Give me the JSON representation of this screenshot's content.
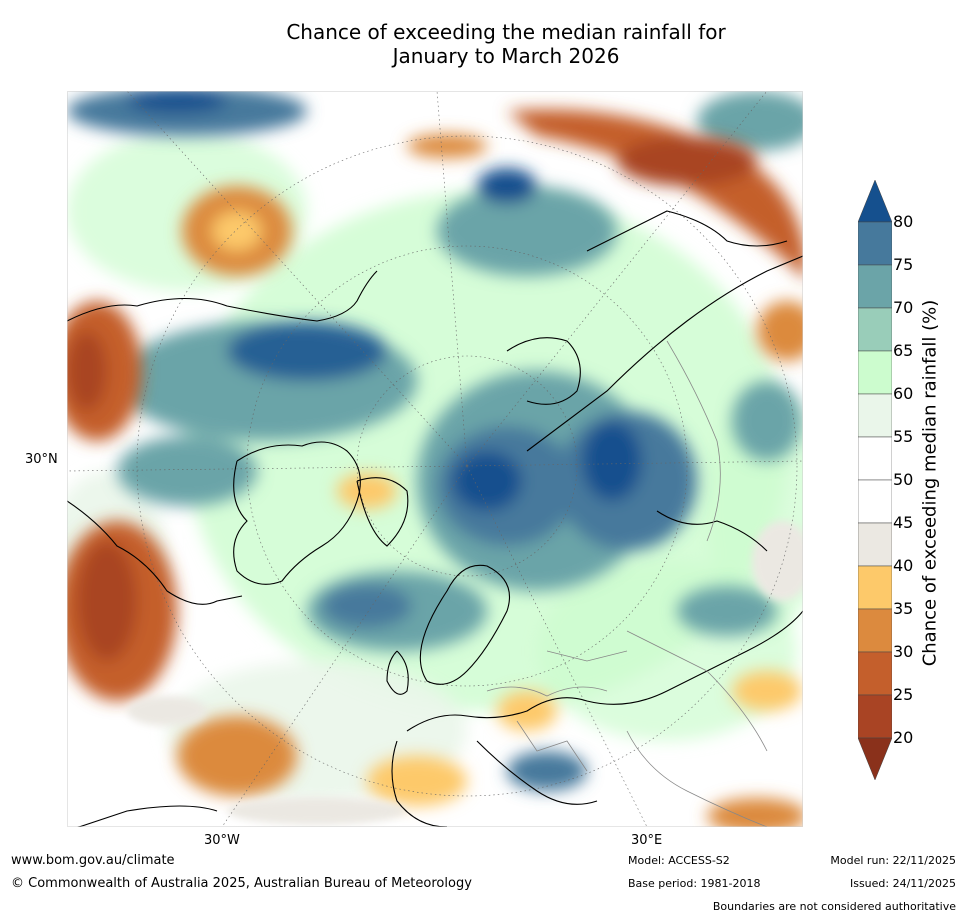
{
  "title": {
    "line1": "Chance of exceeding the median rainfall for",
    "line2": "January to March 2026"
  },
  "map": {
    "lat_label": "30°N",
    "lon_labels": [
      "30°W",
      "30°E"
    ]
  },
  "colorbar": {
    "label": "Chance of exceeding median rainfall (%)",
    "ticks": [
      "80",
      "75",
      "70",
      "65",
      "60",
      "55",
      "50",
      "45",
      "40",
      "35",
      "30",
      "25",
      "20"
    ],
    "colors": [
      "#15508e",
      "#46799c",
      "#6ba4a8",
      "#99cdb9",
      "#ccfcce",
      "#eaf6ea",
      "#ffffff",
      "#ffffff",
      "#ebe8e2",
      "#fdc96a",
      "#dc8a3e",
      "#c45f2c",
      "#a94424",
      "#8a311b"
    ]
  },
  "footer": {
    "url": "www.bom.gov.au/climate",
    "copyright": "© Commonwealth of Australia 2025, Australian Bureau of Meteorology",
    "model": "Model: ACCESS-S2",
    "base_period": "Base period: 1981-2018",
    "model_run": "Model run: 22/11/2025",
    "issued": "Issued: 24/11/2025",
    "disclaimer": "Boundaries are not considered authoritative"
  }
}
